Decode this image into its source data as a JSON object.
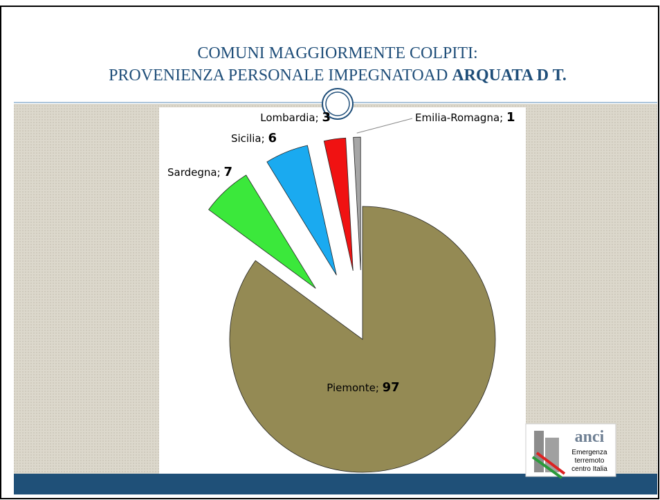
{
  "chart_data": {
    "type": "pie",
    "title": {
      "line1": "COMUNI MAGGIORMENTE COLPITI:",
      "line2": "PROVENIENZA PERSONALE IMPEGNATOAD",
      "emphasis": "ARQUATA D T."
    },
    "categories": [
      "Piemonte",
      "Sardegna",
      "Sicilia",
      "Lombardia",
      "Emilia-Romagna"
    ],
    "values": [
      97,
      7,
      6,
      3,
      1
    ],
    "colors": [
      "#948a54",
      "#3be83b",
      "#1aaaf0",
      "#f01212",
      "#a6a6a6"
    ],
    "label_separator": ";"
  },
  "logo": {
    "name": "anci",
    "line1": "Emergenza",
    "line2": "terremoto",
    "line3": "centro Italia"
  }
}
